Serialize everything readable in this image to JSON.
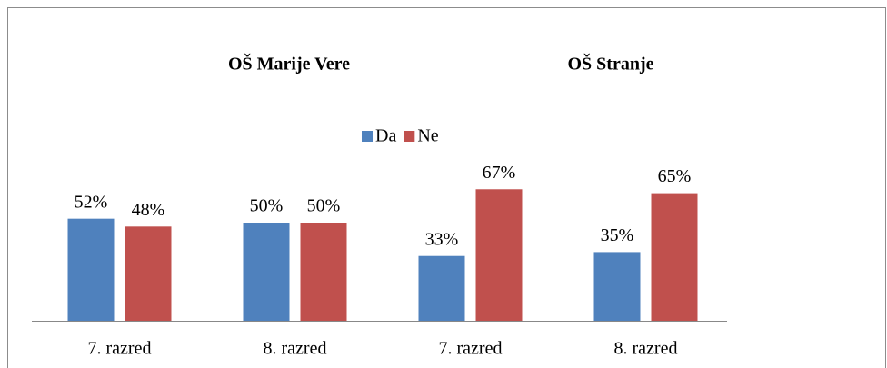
{
  "chart_data": {
    "type": "bar",
    "group_titles": [
      "OŠ Marije Vere",
      "OŠ Stranje"
    ],
    "categories": [
      "7. razred",
      "8. razred",
      "7. razred",
      "8. razred"
    ],
    "series": [
      {
        "name": "Da",
        "color": "#4f81bd",
        "values": [
          52,
          50,
          33,
          35
        ],
        "value_labels": [
          "52%",
          "50%",
          "33%",
          "35%"
        ]
      },
      {
        "name": "Ne",
        "color": "#c0504d",
        "values": [
          48,
          50,
          67,
          65
        ],
        "value_labels": [
          "48%",
          "50%",
          "67%",
          "65%"
        ]
      }
    ],
    "legend": "top"
  }
}
